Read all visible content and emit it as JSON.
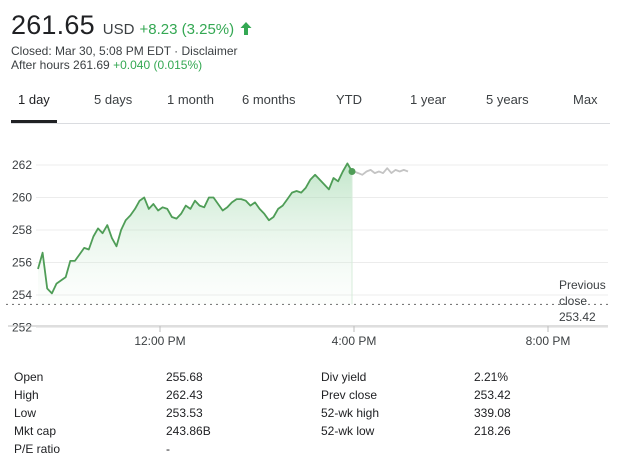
{
  "quote": {
    "price": "261.65",
    "currency": "USD",
    "change": "+8.23 (3.25%)",
    "closed_line": "Closed: Mar 30, 5:08 PM EDT · Disclaimer",
    "after_hours_label": "After hours 261.69",
    "after_hours_change": "+0.040 (0.015%)"
  },
  "colors": {
    "positive": "#34a853",
    "line": "#4f9d57",
    "after_line": "#c4c4c4"
  },
  "tabs": [
    {
      "label": "1 day",
      "active": true
    },
    {
      "label": "5 days"
    },
    {
      "label": "1 month"
    },
    {
      "label": "6 months"
    },
    {
      "label": "YTD"
    },
    {
      "label": "1 year"
    },
    {
      "label": "5 years"
    },
    {
      "label": "Max"
    }
  ],
  "chart_data": {
    "type": "line",
    "y_ticks": [
      "262",
      "260",
      "258",
      "256",
      "254",
      "252"
    ],
    "x_ticks": [
      "12:00 PM",
      "4:00 PM",
      "8:00 PM"
    ],
    "ylim": [
      252,
      263
    ],
    "grid": true,
    "previous_close": {
      "label_line1": "Previous",
      "label_line2": "close",
      "value": "253.42",
      "y": 253.42
    },
    "series": [
      {
        "values": [
          255.6,
          256.6,
          254.4,
          254.1,
          254.7,
          254.9,
          255.1,
          256.1,
          256.1,
          256.5,
          256.9,
          256.8,
          257.6,
          258.1,
          257.8,
          258.3,
          257.5,
          257.0,
          258.0,
          258.6,
          258.9,
          259.3,
          259.8,
          260.0,
          259.3,
          259.6,
          259.2,
          259.4,
          259.3,
          258.8,
          258.7,
          259.0,
          259.5,
          259.3,
          259.8,
          259.5,
          259.4,
          260.0,
          260.0,
          259.6,
          259.2,
          259.4,
          259.7,
          259.9,
          259.9,
          259.8,
          259.5,
          259.7,
          259.3,
          259.0,
          258.6,
          258.8,
          259.3,
          259.5,
          259.9,
          260.3,
          260.4,
          260.3,
          260.6,
          261.1,
          261.4,
          261.1,
          260.8,
          260.5,
          261.2,
          261.0,
          261.6,
          262.1,
          261.6
        ]
      },
      {
        "values": [
          261.6,
          261.5,
          261.4,
          261.6,
          261.7,
          261.5,
          261.6,
          261.5,
          261.8,
          261.5,
          261.7,
          261.6,
          261.7,
          261.6
        ]
      }
    ]
  },
  "stats": [
    {
      "label": "Open",
      "value": "255.68"
    },
    {
      "label": "High",
      "value": "262.43"
    },
    {
      "label": "Low",
      "value": "253.53"
    },
    {
      "label": "Mkt cap",
      "value": "243.86B"
    },
    {
      "label": "P/E ratio",
      "value": "-"
    },
    {
      "label": "Div yield",
      "value": "2.21%"
    },
    {
      "label": "Prev close",
      "value": "253.42"
    },
    {
      "label": "52-wk high",
      "value": "339.08"
    },
    {
      "label": "52-wk low",
      "value": "218.26"
    }
  ]
}
